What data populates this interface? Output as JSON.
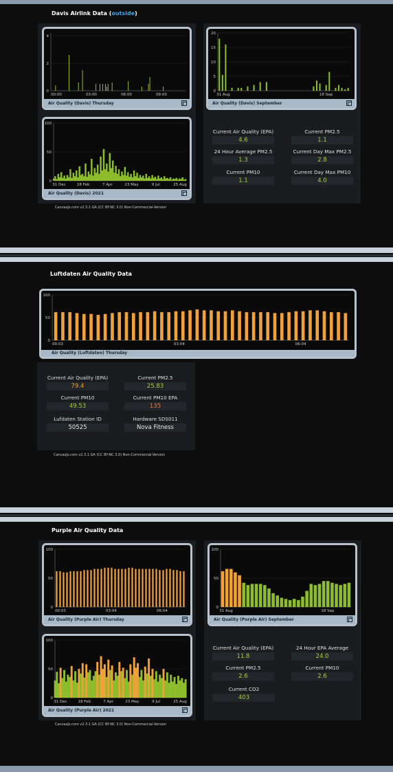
{
  "sections": {
    "davis": {
      "title": "Davis Airlink Data (",
      "title_link": "outside",
      "title_end": ")"
    },
    "luftdaten": {
      "title": "Luftdaten Air Quality Data"
    },
    "purple": {
      "title": "Purple Air Quality Data"
    }
  },
  "credit": "CanvasJs.com v2.3.1 GA (CC BY-NC 3.0) Non-Commercial-Version",
  "stats": {
    "davis": [
      {
        "label": "Current Air Quality (EPA)",
        "value": "4.6",
        "color": "#a7cf3a"
      },
      {
        "label": "Current PM2.5",
        "value": "1.1",
        "color": "#a7cf3a"
      },
      {
        "label": "24 Hour Average PM2.5",
        "value": "1.3",
        "color": "#a7cf3a"
      },
      {
        "label": "Current Day Max PM2.5",
        "value": "2.8",
        "color": "#a7cf3a"
      },
      {
        "label": "Current PM10",
        "value": "1.1",
        "color": "#a7cf3a"
      },
      {
        "label": "Current Day Max PM10",
        "value": "4.0",
        "color": "#a7cf3a"
      }
    ],
    "luftdaten": [
      {
        "label": "Current Air Quality (EPA)",
        "value": "79.4",
        "color": "#f0a23a"
      },
      {
        "label": "Current PM2.5",
        "value": "25.83",
        "color": "#a7cf3a"
      },
      {
        "label": "Current PM10",
        "value": "49.53",
        "color": "#a7cf3a"
      },
      {
        "label": "Current PM10 EPA",
        "value": "135",
        "color": "#f07a3a"
      },
      {
        "label": "Lufdaten Station ID",
        "value": "50525",
        "color": "#e8e8e8"
      },
      {
        "label": "Hardware SDS011",
        "value": "Nova Fitness",
        "color": "#e8e8e8"
      }
    ],
    "purple": [
      {
        "label": "Current Air Quality (EPA)",
        "value": "11.8",
        "color": "#a7cf3a"
      },
      {
        "label": "24 Hour EPA Average",
        "value": "24.0",
        "color": "#a7cf3a"
      },
      {
        "label": "Current PM2.5",
        "value": "2.6",
        "color": "#a7cf3a"
      },
      {
        "label": "Current PM10",
        "value": "2.6",
        "color": "#a7cf3a"
      },
      {
        "label": "Current CO2",
        "value": "403",
        "color": "#a7cf3a"
      }
    ]
  },
  "chart_data": [
    {
      "id": "davis-thursday",
      "type": "bar",
      "title": "Air Quality (Davis) Thursday",
      "xlabels": [
        "00:00",
        "03:00",
        "06:00",
        "09:00"
      ],
      "yticks": [
        0,
        2,
        4
      ],
      "ylim": [
        0,
        4.2
      ],
      "values": [
        0,
        0,
        0,
        0.4,
        0,
        0,
        0,
        0,
        0,
        0,
        0,
        0,
        0,
        2.6,
        0,
        0,
        0,
        0,
        0,
        0,
        0.6,
        0,
        0,
        1.5,
        0,
        0,
        0,
        0,
        0,
        0,
        0,
        0,
        0,
        0.5,
        0,
        0,
        0.5,
        0,
        0.5,
        0,
        0.5,
        0.3,
        0.5,
        0,
        0,
        0.6,
        0,
        0,
        0,
        0,
        0,
        0,
        0,
        0,
        0,
        0,
        0,
        0.7,
        0,
        0,
        0,
        0,
        0,
        0,
        0,
        0,
        0,
        0.3,
        0,
        0,
        0,
        0,
        0.5,
        1.0,
        0,
        0,
        0,
        0,
        0,
        0,
        0,
        0,
        0,
        0.3,
        0,
        0,
        0,
        0,
        0,
        0,
        0,
        0,
        0,
        0,
        0,
        0,
        0,
        0,
        0,
        0
      ],
      "color": "#a7cf3a"
    },
    {
      "id": "davis-september",
      "type": "bar",
      "title": "Air Quality (Davis) September",
      "xlabels": [
        "31 Aug",
        "18 Sep"
      ],
      "yticks": [
        0,
        5,
        10,
        15,
        20
      ],
      "ylim": [
        0,
        20
      ],
      "values": [
        18,
        5.5,
        16,
        0,
        1,
        0,
        1,
        1,
        0,
        1.5,
        0,
        2,
        0,
        3,
        0,
        3,
        0,
        0,
        0,
        0,
        0,
        0,
        0,
        0,
        0,
        0,
        0,
        0,
        0,
        0,
        1.5,
        3.5,
        2.5,
        0,
        2,
        6.5,
        0,
        1,
        2,
        1,
        0.5,
        1
      ],
      "color": "#8dbc2c"
    },
    {
      "id": "davis-2021",
      "type": "area",
      "title": "Air Quality (Davis) 2021",
      "xlabels": [
        "31 Dec",
        "18 Feb",
        "7 Apr",
        "23 May",
        "9 Jul",
        "25 Aug"
      ],
      "yticks": [
        0,
        50,
        100
      ],
      "ylim": [
        0,
        100
      ],
      "values": [
        4,
        8,
        3,
        12,
        6,
        15,
        5,
        9,
        4,
        10,
        6,
        20,
        5,
        14,
        8,
        18,
        6,
        25,
        10,
        12,
        8,
        30,
        7,
        16,
        11,
        38,
        9,
        22,
        14,
        28,
        12,
        42,
        18,
        55,
        20,
        30,
        16,
        48,
        22,
        35,
        14,
        26,
        12,
        20,
        8,
        16,
        10,
        24,
        9,
        15,
        7,
        12,
        6,
        18,
        8,
        14,
        5,
        10,
        6,
        9,
        4,
        12,
        5,
        8,
        4,
        10,
        5,
        7,
        3,
        9,
        4,
        6,
        3,
        8,
        4,
        5,
        3,
        6,
        2,
        4,
        3,
        5,
        2,
        4,
        3,
        6,
        2,
        3
      ],
      "color": "#8dbc2c"
    },
    {
      "id": "luftdaten-thursday",
      "type": "bar",
      "title": "Air Quality (Luftdaten) Thursday",
      "xlabels": [
        "00:03",
        "03:04",
        "06:04"
      ],
      "yticks": [
        0,
        50,
        100
      ],
      "ylim": [
        0,
        100
      ],
      "values": [
        62,
        62,
        62,
        60,
        58,
        58,
        56,
        58,
        60,
        62,
        62,
        60,
        62,
        62,
        64,
        62,
        62,
        64,
        64,
        66,
        68,
        66,
        66,
        64,
        64,
        66,
        64,
        62,
        62,
        62,
        62,
        60,
        60,
        62,
        64,
        64,
        66,
        66,
        64,
        62,
        62,
        60
      ],
      "color": "#f0a23a"
    },
    {
      "id": "purple-thursday",
      "type": "bar",
      "title": "Air Quality (Purple Air) Thursday",
      "xlabels": [
        "00:03",
        "03:04",
        "06:04"
      ],
      "yticks": [
        0,
        50,
        100
      ],
      "ylim": [
        0,
        100
      ],
      "values": [
        62,
        62,
        60,
        60,
        62,
        62,
        62,
        62,
        64,
        64,
        64,
        66,
        66,
        66,
        68,
        68,
        68,
        66,
        66,
        66,
        66,
        68,
        68,
        66,
        66,
        66,
        66,
        66,
        66,
        66,
        64,
        64,
        66,
        66,
        64,
        64,
        62,
        62
      ],
      "color": "#f0a23a"
    },
    {
      "id": "purple-september",
      "type": "bar",
      "title": "Air Quality (Purple Air) September",
      "xlabels": [
        "31 Aug",
        "18 Sep"
      ],
      "yticks": [
        0,
        50,
        100
      ],
      "ylim": [
        0,
        100
      ],
      "values": [
        62,
        66,
        66,
        60,
        55,
        42,
        38,
        40,
        40,
        40,
        38,
        32,
        24,
        20,
        16,
        14,
        12,
        14,
        12,
        18,
        28,
        40,
        38,
        40,
        45,
        45,
        42,
        40,
        38,
        40,
        42
      ],
      "color": "#8dbc2c",
      "highlight_color": "#f0a23a",
      "highlight_threshold": 50
    },
    {
      "id": "purple-2021",
      "type": "area",
      "title": "Air Quality (Purple Air) 2021",
      "xlabels": [
        "31 Dec",
        "18 Feb",
        "7 Apr",
        "23 May",
        "9 Jul",
        "25 Aug"
      ],
      "yticks": [
        0,
        50,
        100
      ],
      "ylim": [
        0,
        100
      ],
      "values": [
        30,
        45,
        25,
        52,
        34,
        48,
        28,
        40,
        36,
        55,
        30,
        46,
        26,
        50,
        42,
        60,
        35,
        58,
        44,
        48,
        30,
        38,
        46,
        62,
        40,
        72,
        50,
        58,
        36,
        66,
        48,
        56,
        30,
        44,
        38,
        62,
        46,
        52,
        34,
        48,
        28,
        58,
        40,
        70,
        52,
        60,
        36,
        48,
        30,
        54,
        42,
        68,
        38,
        50,
        32,
        46,
        28,
        40,
        34,
        50,
        30,
        44,
        26,
        40,
        28,
        36,
        24,
        38,
        30,
        34,
        26,
        32
      ],
      "color": "#8dbc2c",
      "highlight_color": "#f0a23a",
      "highlight_threshold": 50
    }
  ]
}
